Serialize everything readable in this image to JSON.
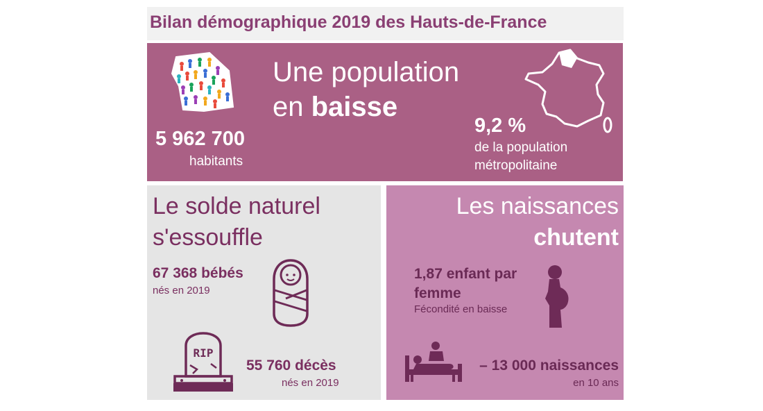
{
  "title": "Bilan démographique 2019 des Hauts-de-France",
  "top": {
    "headline_line1": "Une population",
    "headline_line2_prefix": "en ",
    "headline_line2_bold": "baisse",
    "population_value": "5 962 700",
    "population_label": "habitants",
    "share_value": "9,2 %",
    "share_label_line1": "de la population",
    "share_label_line2": "métropolitaine"
  },
  "left": {
    "heading_line1": "Le solde naturel",
    "heading_line2": "s'essouffle",
    "births_value": "67 368 bébés",
    "births_label": "nés en 2019",
    "deaths_value": "55 760 décès",
    "deaths_label": "nés en 2019",
    "tombstone_text": "RIP"
  },
  "right": {
    "heading_line1": "Les naissances",
    "heading_line2": "chutent",
    "fertility_value_line1": "1,87 enfant par",
    "fertility_value_line2": "femme",
    "fertility_label": "Fécondité en baisse",
    "decline_value": "– 13 000 naissances",
    "decline_label": "en 10 ans"
  },
  "colors": {
    "accent": "#8a3f73",
    "top_panel": "#aa6085",
    "left_panel": "#e5e5e5",
    "right_panel": "#c588b0",
    "icon_dark": "#6e2b57"
  },
  "icons": [
    "crowd-map-icon",
    "france-map-icon",
    "baby-icon",
    "tombstone-icon",
    "pregnant-woman-icon",
    "birth-bed-icon"
  ]
}
